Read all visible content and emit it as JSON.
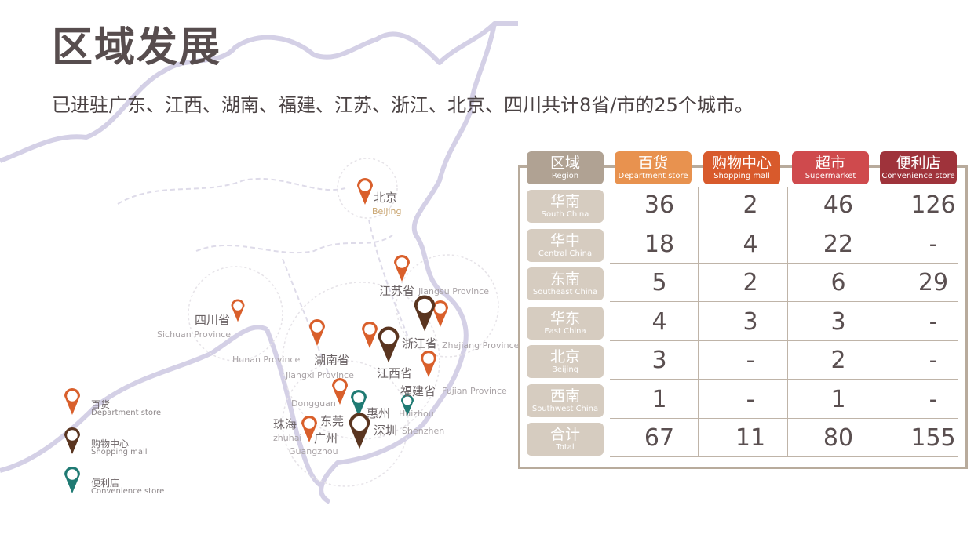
{
  "title": "区域发展",
  "subtitle": "已进驻广东、江西、湖南、福建、江苏、浙江、北京、四川共计8省/市的25个城市。",
  "colors": {
    "department": "#d95f2b",
    "mall": "#5a3520",
    "convenience": "#1f7a73",
    "region_header": "#b0a293",
    "region_row": "#d6ccc0",
    "frame": "#b8ab9c"
  },
  "legend": [
    {
      "icon": "map-pin-orange-icon",
      "cn": "百货",
      "en": "Department store"
    },
    {
      "icon": "map-pin-brown-icon",
      "cn": "购物中心",
      "en": "Shopping mall"
    },
    {
      "icon": "map-pin-teal-icon",
      "cn": "便利店",
      "en": "Convenience store"
    }
  ],
  "map_labels": {
    "beijing_cn": "北京",
    "beijing_en": "Beijing",
    "jiangsu_cn": "江苏省",
    "jiangsu_en": "Jiangsu Province",
    "sichuan_cn": "四川省",
    "sichuan_en": "Sichuan Province",
    "hunan_cn": "湖南省",
    "hunan_en": "Hunan Province",
    "zhejiang_cn": "浙江省",
    "zhejiang_en": "Zhejiang Province",
    "jiangxi_cn": "江西省",
    "jiangxi_en": "Jiangxi Province",
    "fujian_cn": "福建省",
    "fujian_en": "Fujian Province",
    "dongguan_cn": "东莞",
    "dongguan_en": "Dongguan",
    "huizhou_cn": "惠州",
    "huizhou_en": "Huizhou",
    "shenzhen_cn": "深圳",
    "shenzhen_en": "Shenzhen",
    "zhuhai_cn": "珠海",
    "zhuhai_en": "zhuhai",
    "guangzhou_cn": "广州",
    "guangzhou_en": "Guangzhou"
  },
  "table": {
    "headers": [
      {
        "cn": "区域",
        "en": "Region",
        "color": "#b0a293"
      },
      {
        "cn": "百货",
        "en": "Department store",
        "color": "#e8924f"
      },
      {
        "cn": "购物中心",
        "en": "Shopping mall",
        "color": "#d85a2c"
      },
      {
        "cn": "超市",
        "en": "Supermarket",
        "color": "#cf4a4d"
      },
      {
        "cn": "便利店",
        "en": "Convenience store",
        "color": "#9f333b"
      }
    ],
    "rows": [
      {
        "cn": "华南",
        "en": "South China",
        "values": [
          "36",
          "2",
          "46",
          "126"
        ]
      },
      {
        "cn": "华中",
        "en": "Central China",
        "values": [
          "18",
          "4",
          "22",
          "-"
        ]
      },
      {
        "cn": "东南",
        "en": "Southeast China",
        "values": [
          "5",
          "2",
          "6",
          "29"
        ]
      },
      {
        "cn": "华东",
        "en": "East China",
        "values": [
          "4",
          "3",
          "3",
          "-"
        ]
      },
      {
        "cn": "北京",
        "en": "Beijing",
        "values": [
          "3",
          "-",
          "2",
          "-"
        ]
      },
      {
        "cn": "西南",
        "en": "Southwest China",
        "values": [
          "1",
          "-",
          "1",
          "-"
        ]
      },
      {
        "cn": "合计",
        "en": "Total",
        "values": [
          "67",
          "11",
          "80",
          "155"
        ]
      }
    ]
  }
}
